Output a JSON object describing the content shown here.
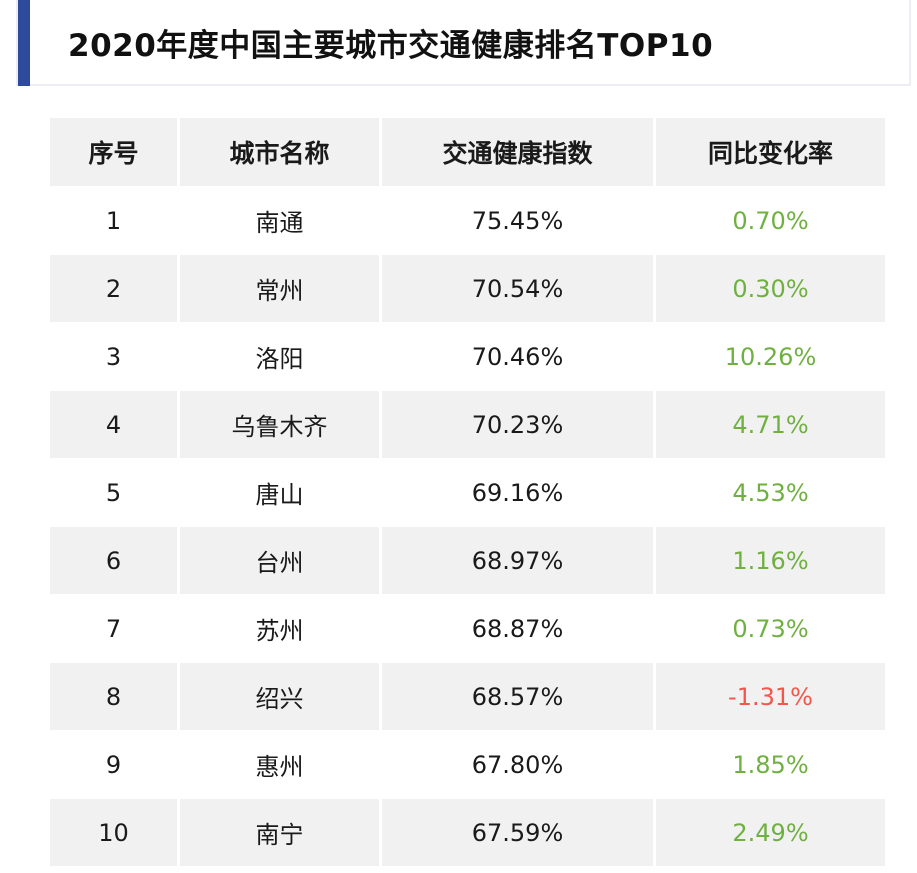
{
  "title": "2020年度中国主要城市交通健康排名TOP10",
  "colors": {
    "accent_bar": "#2d4a9b",
    "positive": "#6fb040",
    "negative": "#f2574a",
    "stripe": "#f1f1f1"
  },
  "table": {
    "headers": [
      "序号",
      "城市名称",
      "交通健康指数",
      "同比变化率"
    ],
    "rows": [
      {
        "rank": "1",
        "city": "南通",
        "index": "75.45%",
        "change": "0.70%",
        "trend": "up"
      },
      {
        "rank": "2",
        "city": "常州",
        "index": "70.54%",
        "change": "0.30%",
        "trend": "up"
      },
      {
        "rank": "3",
        "city": "洛阳",
        "index": "70.46%",
        "change": "10.26%",
        "trend": "up"
      },
      {
        "rank": "4",
        "city": "乌鲁木齐",
        "index": "70.23%",
        "change": "4.71%",
        "trend": "up"
      },
      {
        "rank": "5",
        "city": "唐山",
        "index": "69.16%",
        "change": "4.53%",
        "trend": "up"
      },
      {
        "rank": "6",
        "city": "台州",
        "index": "68.97%",
        "change": "1.16%",
        "trend": "up"
      },
      {
        "rank": "7",
        "city": "苏州",
        "index": "68.87%",
        "change": "0.73%",
        "trend": "up"
      },
      {
        "rank": "8",
        "city": "绍兴",
        "index": "68.57%",
        "change": "-1.31%",
        "trend": "down"
      },
      {
        "rank": "9",
        "city": "惠州",
        "index": "67.80%",
        "change": "1.85%",
        "trend": "up"
      },
      {
        "rank": "10",
        "city": "南宁",
        "index": "67.59%",
        "change": "2.49%",
        "trend": "up"
      }
    ]
  }
}
